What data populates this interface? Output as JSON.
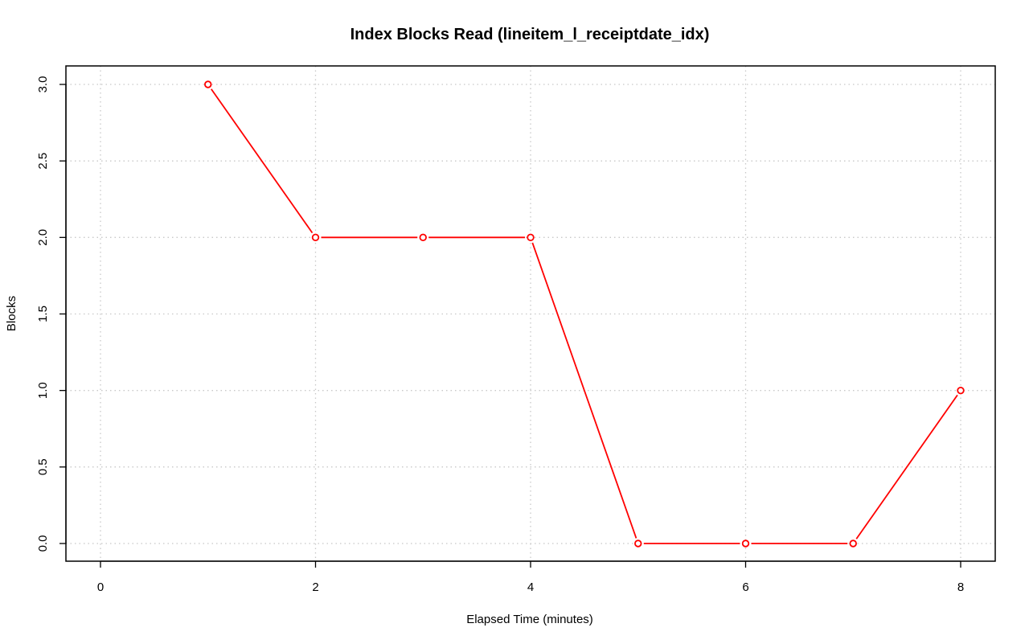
{
  "chart_data": {
    "type": "line",
    "title": "Index Blocks Read (lineitem_l_receiptdate_idx)",
    "xlabel": "Elapsed Time (minutes)",
    "ylabel": "Blocks",
    "x": [
      1,
      2,
      3,
      4,
      5,
      6,
      7,
      8
    ],
    "series": [
      {
        "values": [
          3,
          2,
          2,
          2,
          0,
          0,
          0,
          1
        ]
      }
    ],
    "xlim": [
      0,
      8
    ],
    "ylim": [
      0,
      3
    ],
    "xticks": [
      0,
      2,
      4,
      6,
      8
    ],
    "xtick_labels": [
      "0",
      "2",
      "4",
      "6",
      "8"
    ],
    "yticks": [
      0,
      0.5,
      1,
      1.5,
      2,
      2.5,
      3
    ],
    "ytick_labels": [
      "0.0",
      "0.5",
      "1.0",
      "1.5",
      "2.0",
      "2.5",
      "3.0"
    ],
    "grid": true,
    "colors": {
      "series": "#ff0000",
      "grid": "#c8c8c8"
    }
  }
}
